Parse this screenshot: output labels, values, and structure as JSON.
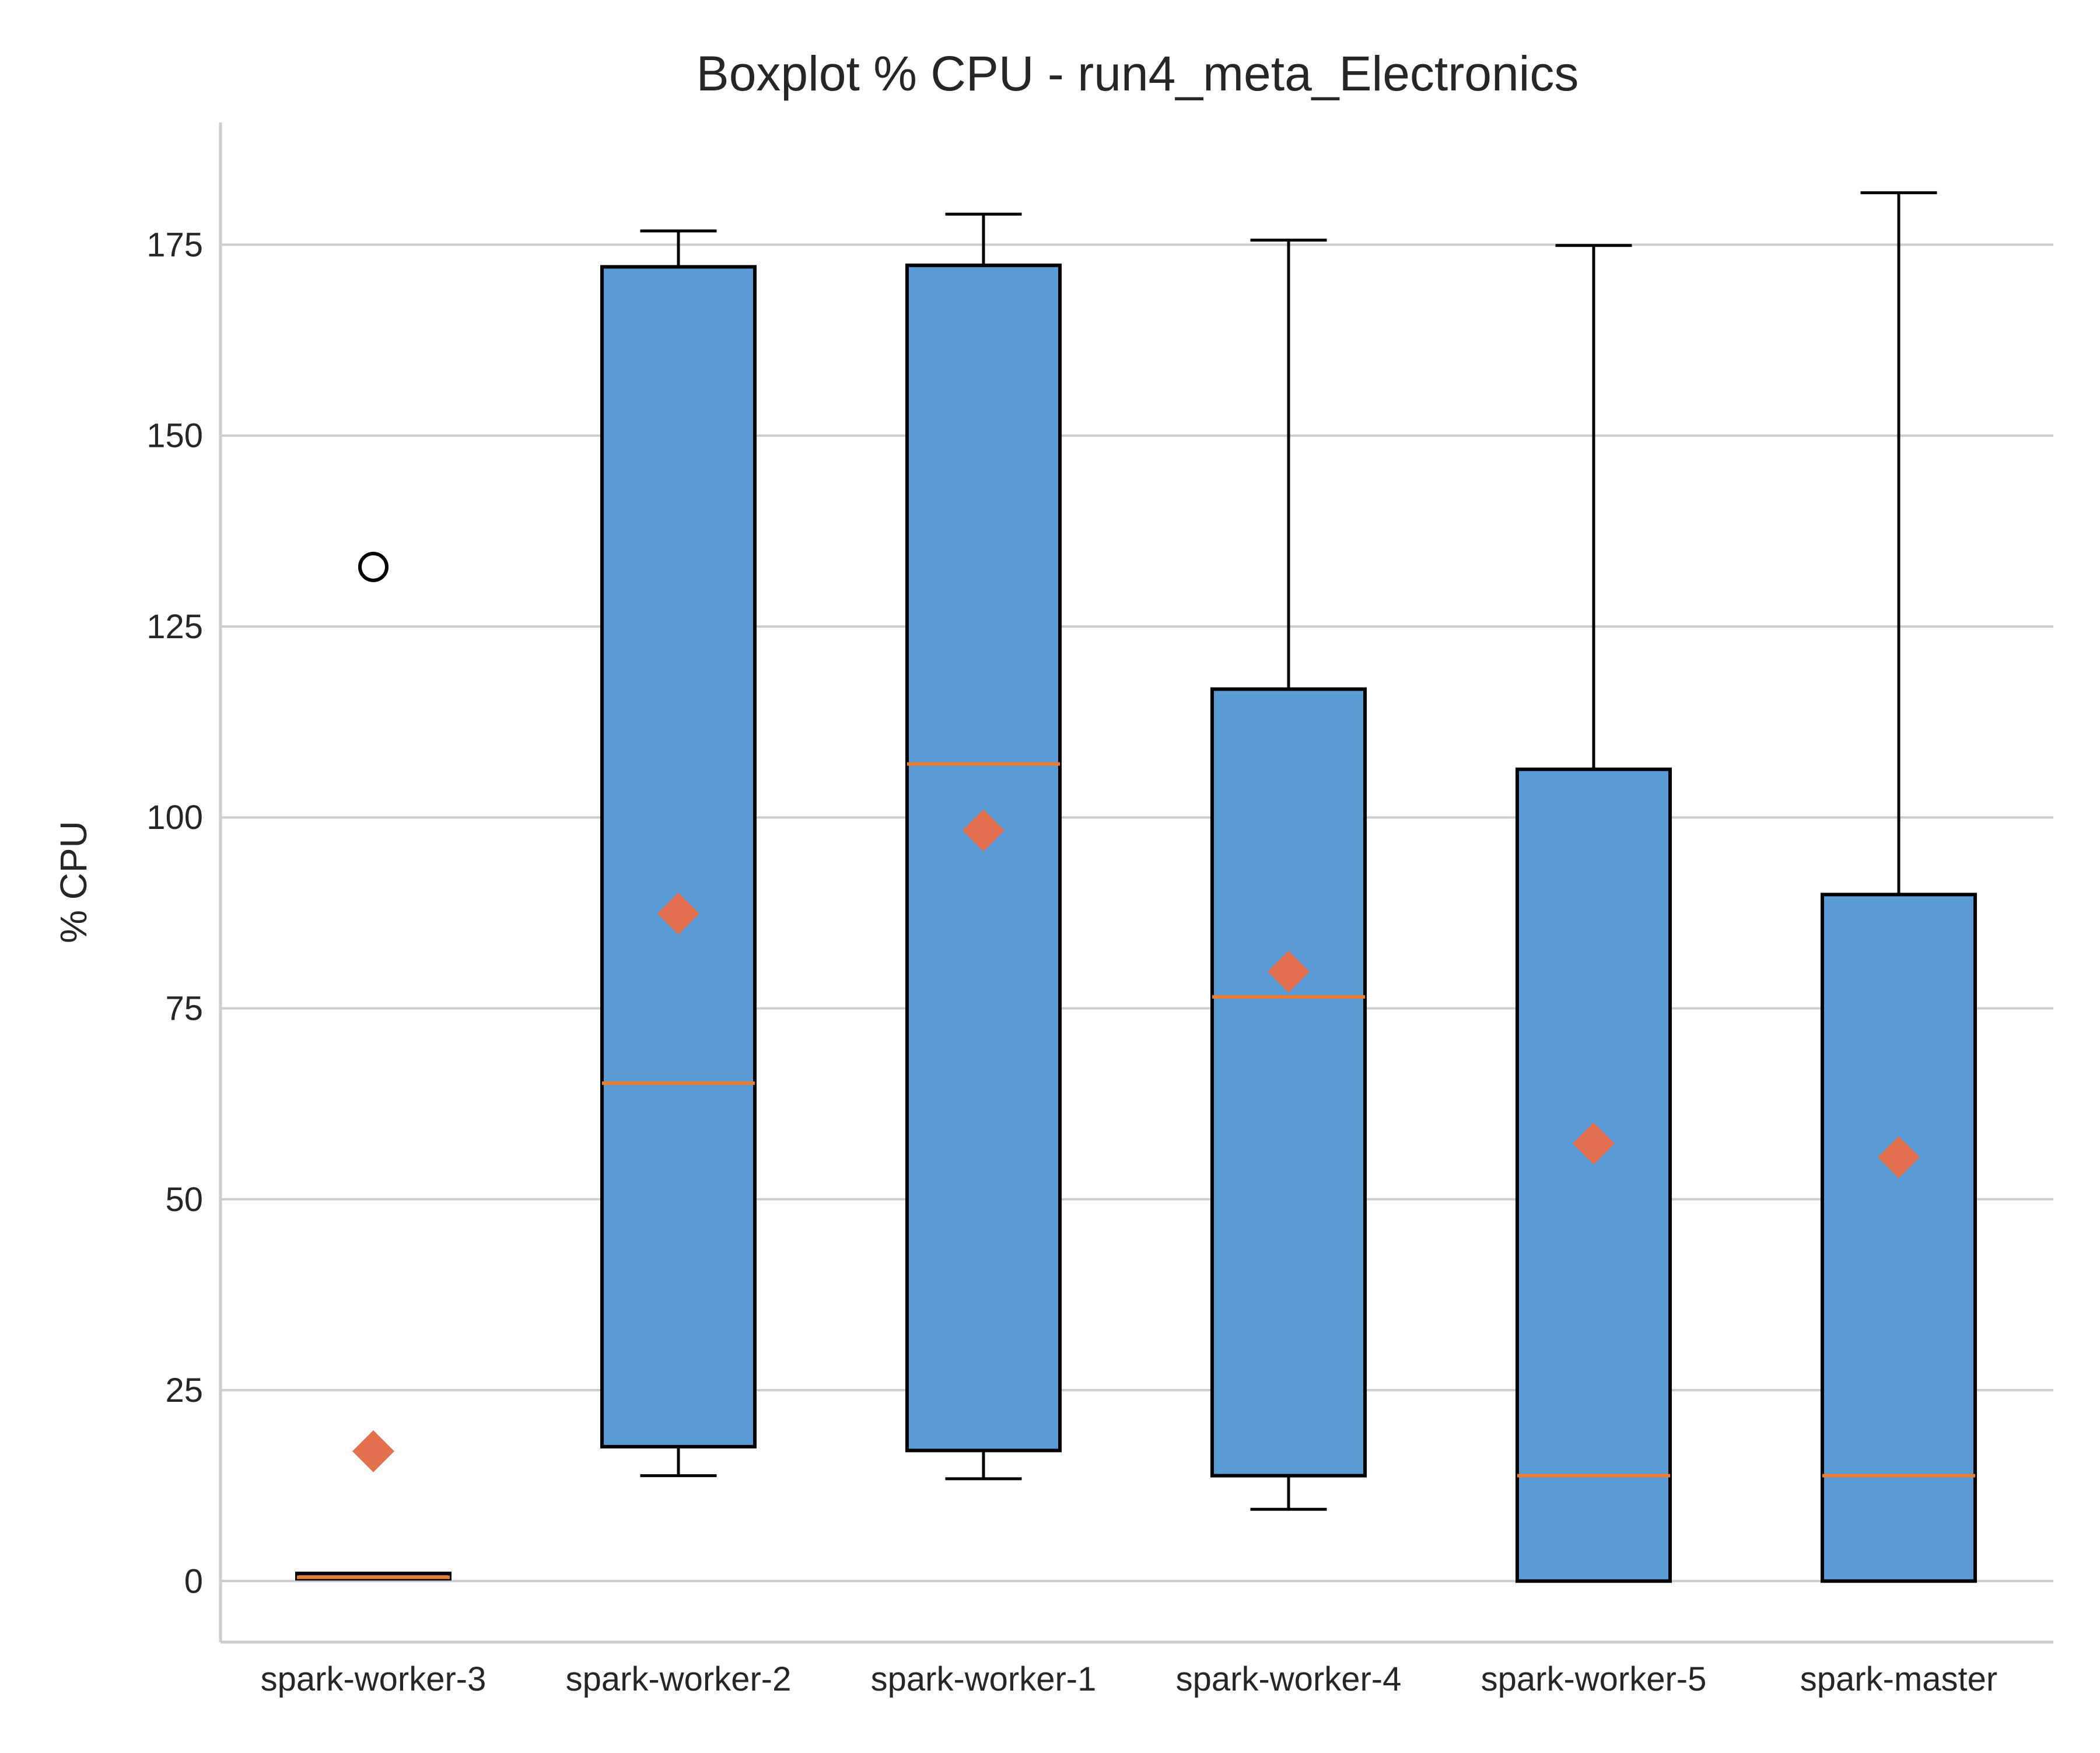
{
  "chart_data": {
    "type": "box",
    "title": "Boxplot % CPU - run4_meta_Electronics",
    "xlabel": "",
    "ylabel": "% CPU",
    "ylim": [
      -8,
      191
    ],
    "yticks": [
      0,
      25,
      50,
      75,
      100,
      125,
      150,
      175
    ],
    "grid": "horizontal",
    "categories": [
      "spark-worker-3",
      "spark-worker-2",
      "spark-worker-1",
      "spark-worker-4",
      "spark-worker-5",
      "spark-master"
    ],
    "boxes": [
      {
        "name": "spark-worker-3",
        "whisker_low": 0.3,
        "q1": 0.3,
        "median": 0.5,
        "q3": 1.0,
        "whisker_high": 1.0,
        "mean": 17.0,
        "outliers": [
          132.8
        ]
      },
      {
        "name": "spark-worker-2",
        "whisker_low": 13.8,
        "q1": 17.6,
        "median": 65.2,
        "q3": 172.1,
        "whisker_high": 176.8,
        "mean": 87.4,
        "outliers": []
      },
      {
        "name": "spark-worker-1",
        "whisker_low": 13.4,
        "q1": 17.1,
        "median": 107.0,
        "q3": 172.3,
        "whisker_high": 179.0,
        "mean": 98.3,
        "outliers": []
      },
      {
        "name": "spark-worker-4",
        "whisker_low": 9.4,
        "q1": 13.8,
        "median": 76.5,
        "q3": 116.8,
        "whisker_high": 175.6,
        "mean": 79.8,
        "outliers": []
      },
      {
        "name": "spark-worker-5",
        "whisker_low": 0.0,
        "q1": 0.0,
        "median": 13.8,
        "q3": 106.3,
        "whisker_high": 174.9,
        "mean": 57.3,
        "outliers": []
      },
      {
        "name": "spark-master",
        "whisker_low": 0.0,
        "q1": 0.0,
        "median": 13.8,
        "q3": 89.9,
        "whisker_high": 181.8,
        "mean": 55.5,
        "outliers": []
      }
    ],
    "colors": {
      "box_fill": "#5b9bd5",
      "box_edge": "#000000",
      "median": "#ed7d31",
      "mean_marker": "#e2704f",
      "grid": "#cccccc",
      "axis": "#cccccc"
    }
  }
}
